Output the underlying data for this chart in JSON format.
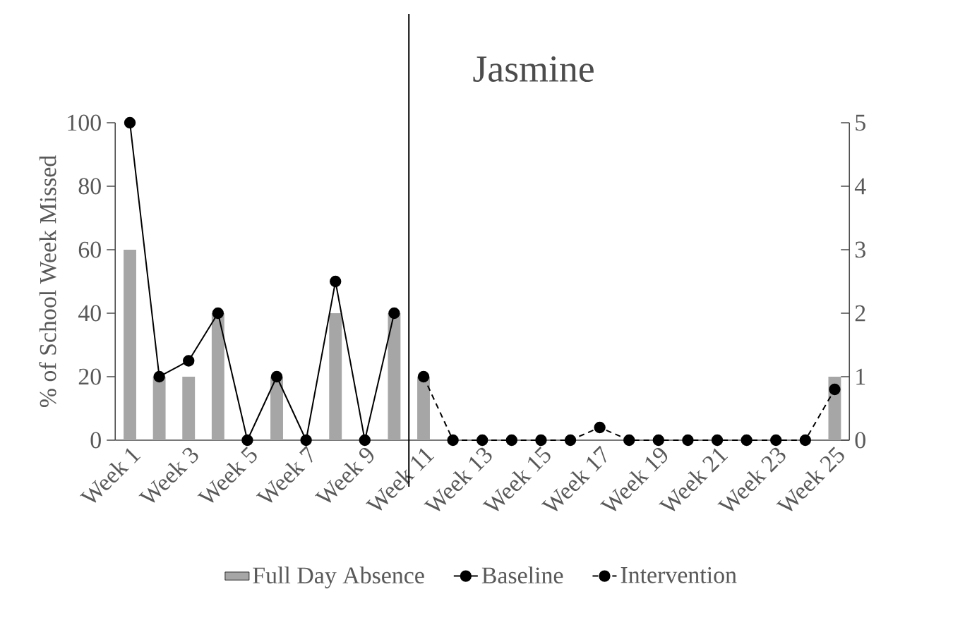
{
  "chart_data": {
    "type": "bar",
    "title": "Jasmine",
    "ylabel": "% of School Week Missed",
    "categories": [
      "Week 1",
      null,
      "Week 3",
      null,
      "Week 5",
      null,
      "Week 7",
      null,
      "Week 9",
      null,
      "Week 11",
      null,
      "Week 13",
      null,
      "Week 15",
      null,
      "Week 17",
      null,
      "Week 19",
      null,
      "Week 21",
      null,
      "Week 23",
      null,
      "Week 25"
    ],
    "series": [
      {
        "name": "Full Day Absence",
        "color": "#a6a6a6",
        "values": [
          60,
          20,
          20,
          40,
          0,
          20,
          0,
          40,
          0,
          40,
          20,
          0,
          0,
          0,
          0,
          0,
          0,
          0,
          0,
          0,
          0,
          0,
          0,
          0,
          20
        ]
      },
      {
        "name": "Baseline",
        "type": "line",
        "axis": "y2",
        "color": "#000000",
        "line_style": "solid",
        "values": [
          5,
          1,
          1.25,
          2,
          0,
          1,
          0,
          2.5,
          0,
          2,
          null,
          null,
          null,
          null,
          null,
          null,
          null,
          null,
          null,
          null,
          null,
          null,
          null,
          null,
          null
        ]
      },
      {
        "name": "Intervention",
        "type": "line",
        "axis": "y2",
        "color": "#000000",
        "line_style": "dashed",
        "values": [
          null,
          null,
          null,
          null,
          null,
          null,
          null,
          null,
          null,
          null,
          1,
          0,
          0,
          0,
          0,
          0,
          0.2,
          0,
          0,
          0,
          0,
          0,
          0,
          0,
          0.8
        ]
      }
    ],
    "marker": "circle",
    "ylim": [
      0,
      100
    ],
    "yticks": [
      0,
      20,
      40,
      60,
      80,
      100
    ],
    "y2lim": [
      0,
      5
    ],
    "y2ticks": [
      0,
      1,
      2,
      3,
      4,
      5
    ],
    "legend": "bottom"
  }
}
